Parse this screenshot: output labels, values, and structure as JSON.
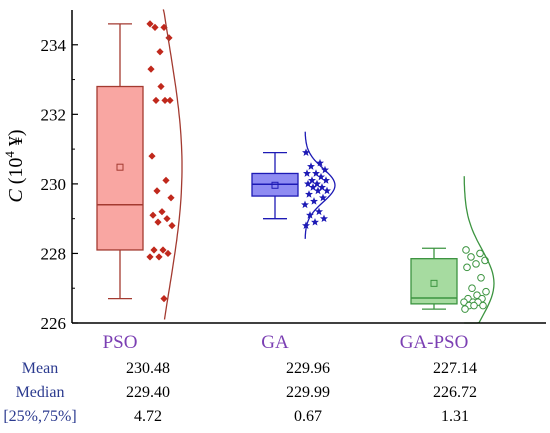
{
  "chart_data": {
    "type": "box",
    "ylabel_var": "C",
    "ylabel_unit": "(10",
    "ylabel_exp": "4",
    "ylabel_cur": " ¥)",
    "ylim": [
      226,
      235
    ],
    "yticks": [
      226,
      228,
      230,
      232,
      234
    ],
    "categories": [
      "PSO",
      "GA",
      "GA-PSO"
    ],
    "colors": {
      "PSO": {
        "box": "#f9a6a2",
        "edge": "#a33a30",
        "point": "#c0281c",
        "label": "#7b3fb3"
      },
      "GA": {
        "box": "#8f8cf2",
        "edge": "#1d1ab5",
        "point": "#1d1ab5",
        "label": "#7b3fb3"
      },
      "GA-PSO": {
        "box": "#a6dba0",
        "edge": "#3c9440",
        "point": "#3c9440",
        "label": "#7b3fb3"
      }
    },
    "series": [
      {
        "name": "PSO",
        "whisker_low": 226.7,
        "q1": 228.1,
        "median": 229.4,
        "q3": 232.8,
        "whisker_high": 234.6,
        "mean": 230.48,
        "points": [
          234.6,
          234.5,
          234.5,
          234.2,
          233.8,
          233.3,
          232.4,
          232.4,
          232.4,
          232.8,
          230.8,
          230.1,
          229.8,
          229.6,
          229.2,
          229.1,
          229.0,
          228.9,
          228.8,
          228.1,
          228.1,
          228.0,
          227.9,
          227.9,
          226.7
        ],
        "marker": "diamond"
      },
      {
        "name": "GA",
        "whisker_low": 229.0,
        "q1": 229.65,
        "median": 229.99,
        "q3": 230.3,
        "whisker_high": 230.9,
        "mean": 229.96,
        "points": [
          230.9,
          230.6,
          230.5,
          230.4,
          230.3,
          230.3,
          230.2,
          230.1,
          230.1,
          230.0,
          230.0,
          229.9,
          229.9,
          229.8,
          229.8,
          229.7,
          229.6,
          229.5,
          229.4,
          229.2,
          229.1,
          229.0,
          228.9,
          228.8
        ],
        "marker": "star"
      },
      {
        "name": "GA-PSO",
        "whisker_low": 226.4,
        "q1": 226.55,
        "median": 226.72,
        "q3": 227.85,
        "whisker_high": 228.15,
        "mean": 227.14,
        "points": [
          228.1,
          228.0,
          227.9,
          227.8,
          227.7,
          227.6,
          227.3,
          227.0,
          226.9,
          226.8,
          226.7,
          226.7,
          226.6,
          226.6,
          226.6,
          226.5,
          226.5,
          226.5,
          226.4
        ],
        "marker": "circle"
      }
    ],
    "stats": {
      "rows": [
        {
          "label": "Mean",
          "values": [
            "230.48",
            "229.96",
            "227.14"
          ]
        },
        {
          "label": "Median",
          "values": [
            "229.40",
            "229.99",
            "226.72"
          ]
        },
        {
          "label": "[25%,75%]",
          "values": [
            "4.72",
            "0.67",
            "1.31"
          ]
        }
      ]
    }
  }
}
